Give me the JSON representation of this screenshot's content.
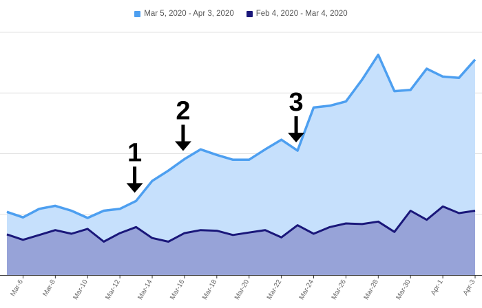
{
  "legend": {
    "series_current": "Mar 5, 2020 - Apr 3, 2020",
    "series_previous": "Feb 4, 2020 - Mar 4, 2020"
  },
  "chart_data": {
    "type": "area",
    "x": [
      "Mar-5",
      "Mar-6",
      "Mar-7",
      "Mar-8",
      "Mar-9",
      "Mar-10",
      "Mar-11",
      "Mar-12",
      "Mar-13",
      "Mar-14",
      "Mar-15",
      "Mar-16",
      "Mar-17",
      "Mar-18",
      "Mar-19",
      "Mar-20",
      "Mar-21",
      "Mar-22",
      "Mar-23",
      "Mar-24",
      "Mar-25",
      "Mar-26",
      "Mar-27",
      "Mar-28",
      "Mar-29",
      "Mar-30",
      "Mar-31",
      "Apr-1",
      "Apr-2",
      "Apr-3"
    ],
    "tick_labels": [
      "Mar-6",
      "Mar-8",
      "Mar-10",
      "Mar-12",
      "Mar-14",
      "Mar-16",
      "Mar-18",
      "Mar-20",
      "Mar-22",
      "Mar-24",
      "Mar-26",
      "Mar-28",
      "Mar-30",
      "Apr-1",
      "Apr-3"
    ],
    "series": [
      {
        "name": "Mar 5, 2020 - Apr 3, 2020",
        "color": "#4d9ff0",
        "fill": "#c6e0fc",
        "values": [
          1.04,
          0.95,
          1.09,
          1.14,
          1.06,
          0.94,
          1.06,
          1.09,
          1.22,
          1.55,
          1.72,
          1.91,
          2.07,
          1.98,
          1.9,
          1.9,
          2.07,
          2.23,
          2.05,
          2.76,
          2.79,
          2.86,
          3.22,
          3.63,
          3.03,
          3.05,
          3.4,
          3.27,
          3.25,
          3.55
        ]
      },
      {
        "name": "Feb 4, 2020 - Mar 4, 2020",
        "color": "#1a177a",
        "fill": "#97a3d8",
        "values": [
          0.67,
          0.58,
          0.66,
          0.74,
          0.68,
          0.76,
          0.55,
          0.69,
          0.79,
          0.61,
          0.55,
          0.69,
          0.74,
          0.73,
          0.66,
          0.7,
          0.74,
          0.62,
          0.82,
          0.68,
          0.79,
          0.85,
          0.84,
          0.88,
          0.71,
          1.06,
          0.91,
          1.13,
          1.02,
          1.06
        ]
      }
    ],
    "ylim": [
      0,
      4
    ],
    "grid": true,
    "legend_position": "top-center",
    "annotations": [
      {
        "label": "1",
        "x": "Mar-13"
      },
      {
        "label": "2",
        "x": "Mar-16"
      },
      {
        "label": "3",
        "x": "Mar-23"
      }
    ]
  }
}
